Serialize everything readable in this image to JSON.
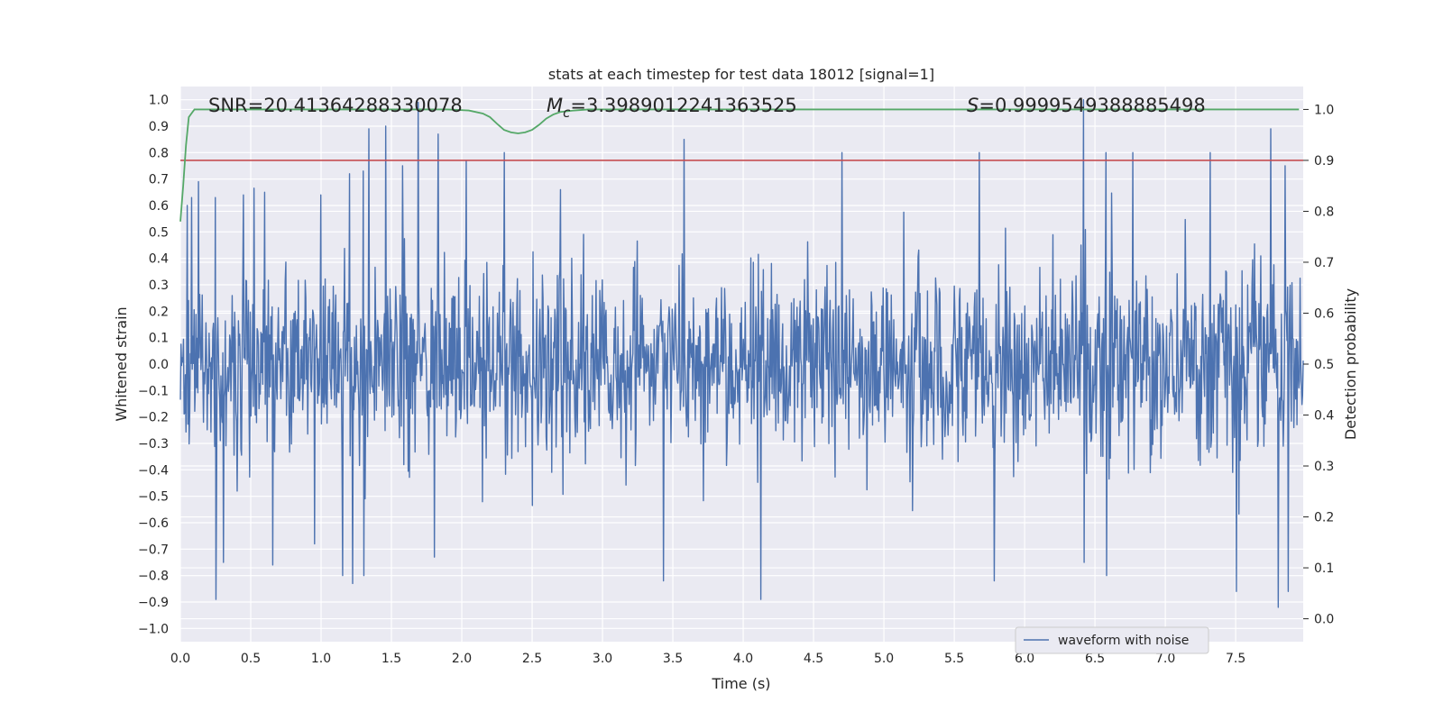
{
  "chart_data": {
    "type": "line",
    "title": "stats at each timestep for test data 18012 [signal=1]",
    "xlabel": "Time (s)",
    "ylabel": "Whitened strain",
    "y2label": "Detection probability",
    "xlim": [
      0.0,
      7.98
    ],
    "ylim": [
      -1.05,
      1.05
    ],
    "y2lim": [
      -0.045,
      1.045
    ],
    "xticks": [
      "0.0",
      "0.5",
      "1.0",
      "1.5",
      "2.0",
      "2.5",
      "3.0",
      "3.5",
      "4.0",
      "4.5",
      "5.0",
      "5.5",
      "6.0",
      "6.5",
      "7.0",
      "7.5"
    ],
    "yticks": [
      "1.0",
      "0.9",
      "0.8",
      "0.7",
      "0.6",
      "0.5",
      "0.4",
      "0.3",
      "0.2",
      "0.1",
      "0.0",
      "−0.1",
      "−0.2",
      "−0.3",
      "−0.4",
      "−0.5",
      "−0.6",
      "−0.7",
      "−0.8",
      "−0.9",
      "−1.0"
    ],
    "y2ticks": [
      "1.0",
      "0.9",
      "0.8",
      "0.7",
      "0.6",
      "0.5",
      "0.4",
      "0.3",
      "0.2",
      "0.1",
      "0.0"
    ],
    "grid": true,
    "legend": {
      "location": "lower-right",
      "entries": [
        "waveform with noise"
      ]
    },
    "annotations": {
      "snr": "SNR=20.41364288330078",
      "mc_symbol": "M",
      "mc_sub": "c",
      "mc_value": "=3.3989012241363525",
      "s_symbol": "S",
      "s_value": "=0.9999549388885498"
    },
    "series": [
      {
        "name": "waveform with noise",
        "axis": "left",
        "color": "#4c72b0",
        "description": "dense whitened strain noise, bulk within about -0.4..0.4",
        "n_points": 1800,
        "peaks": [
          {
            "t": 0.05,
            "v": 0.6
          },
          {
            "t": 0.08,
            "v": 0.63
          },
          {
            "t": 0.13,
            "v": 0.69
          },
          {
            "t": 0.25,
            "v": 0.63
          },
          {
            "t": 0.45,
            "v": 0.64
          },
          {
            "t": 0.6,
            "v": 0.65
          },
          {
            "t": 1.0,
            "v": 0.64
          },
          {
            "t": 1.2,
            "v": 0.72
          },
          {
            "t": 1.3,
            "v": 0.73
          },
          {
            "t": 1.34,
            "v": 0.89
          },
          {
            "t": 1.46,
            "v": 0.9
          },
          {
            "t": 1.58,
            "v": 0.75
          },
          {
            "t": 1.69,
            "v": 0.99
          },
          {
            "t": 1.83,
            "v": 0.87
          },
          {
            "t": 2.03,
            "v": 0.77
          },
          {
            "t": 2.3,
            "v": 0.8
          },
          {
            "t": 2.7,
            "v": 0.66
          },
          {
            "t": 3.58,
            "v": 0.85
          },
          {
            "t": 4.7,
            "v": 0.8
          },
          {
            "t": 5.68,
            "v": 0.8
          },
          {
            "t": 6.42,
            "v": 1.0
          },
          {
            "t": 6.58,
            "v": 0.8
          },
          {
            "t": 6.77,
            "v": 0.8
          },
          {
            "t": 7.32,
            "v": 0.8
          },
          {
            "t": 7.75,
            "v": 0.89
          },
          {
            "t": 7.85,
            "v": 0.75
          }
        ],
        "troughs": [
          {
            "t": 0.25,
            "v": -0.89
          },
          {
            "t": 0.3,
            "v": -0.75
          },
          {
            "t": 0.65,
            "v": -0.76
          },
          {
            "t": 0.95,
            "v": -0.68
          },
          {
            "t": 1.15,
            "v": -0.8
          },
          {
            "t": 1.22,
            "v": -0.83
          },
          {
            "t": 1.3,
            "v": -0.8
          },
          {
            "t": 1.8,
            "v": -0.73
          },
          {
            "t": 3.43,
            "v": -0.82
          },
          {
            "t": 4.12,
            "v": -0.89
          },
          {
            "t": 5.78,
            "v": -0.82
          },
          {
            "t": 6.42,
            "v": -0.75
          },
          {
            "t": 6.58,
            "v": -0.8
          },
          {
            "t": 7.5,
            "v": -0.86
          },
          {
            "t": 7.8,
            "v": -0.92
          },
          {
            "t": 7.87,
            "v": -0.86
          }
        ]
      },
      {
        "name": "detection probability",
        "axis": "right",
        "color": "#55a868",
        "x": [
          0.0,
          0.02,
          0.04,
          0.06,
          0.1,
          0.15,
          0.5,
          1.0,
          1.5,
          1.9,
          2.05,
          2.15,
          2.2,
          2.25,
          2.3,
          2.35,
          2.4,
          2.45,
          2.5,
          2.55,
          2.6,
          2.65,
          2.7,
          2.8,
          2.9,
          3.0,
          4.0,
          5.0,
          6.0,
          7.0,
          7.95
        ],
        "values": [
          0.78,
          0.85,
          0.93,
          0.985,
          1.0,
          1.0,
          1.0,
          1.0,
          1.0,
          1.0,
          0.998,
          0.992,
          0.985,
          0.972,
          0.96,
          0.955,
          0.953,
          0.955,
          0.96,
          0.97,
          0.982,
          0.99,
          0.995,
          0.998,
          1.0,
          1.0,
          1.0,
          1.0,
          1.0,
          1.0,
          1.0
        ]
      },
      {
        "name": "threshold",
        "axis": "right",
        "color": "#c44e52",
        "values": [
          0.9
        ]
      }
    ]
  }
}
